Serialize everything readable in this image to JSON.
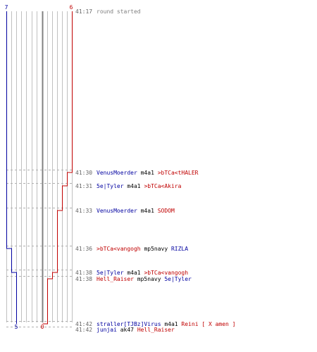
{
  "score": {
    "blue_team_start": "7",
    "red_team_start": "6",
    "blue_team_end": "5",
    "red_team_end": "0"
  },
  "colors": {
    "blue": "#0000a0",
    "red": "#c00000",
    "grid": "#c0c0c0",
    "center": "#808080",
    "dashed": "#b0b0b0",
    "timestamp": "#666666"
  },
  "events": [
    {
      "time": "41:17",
      "segments": [
        {
          "text": "round started",
          "color": "gray"
        }
      ]
    },
    {
      "time": "41:30",
      "segments": [
        {
          "text": "VenusMoerder",
          "color": "blue"
        },
        {
          "text": " m4a1 ",
          "color": "black"
        },
        {
          "text": ">bTCa<tHALER",
          "color": "red"
        }
      ]
    },
    {
      "time": "41:31",
      "segments": [
        {
          "text": "5e|Tyler",
          "color": "blue"
        },
        {
          "text": " m4a1 ",
          "color": "black"
        },
        {
          "text": ">bTCa<Akira",
          "color": "red"
        }
      ]
    },
    {
      "time": "41:33",
      "segments": [
        {
          "text": "VenusMoerder",
          "color": "blue"
        },
        {
          "text": " m4a1 ",
          "color": "black"
        },
        {
          "text": "SODOM",
          "color": "red"
        }
      ]
    },
    {
      "time": "41:36",
      "segments": [
        {
          "text": ">bTCa<vangogh",
          "color": "red"
        },
        {
          "text": " mp5navy ",
          "color": "black"
        },
        {
          "text": "RIZLA",
          "color": "blue"
        }
      ]
    },
    {
      "time": "41:38",
      "segments": [
        {
          "text": "5e|Tyler",
          "color": "blue"
        },
        {
          "text": " m4a1 ",
          "color": "black"
        },
        {
          "text": ">bTCa<vangogh",
          "color": "red"
        }
      ]
    },
    {
      "time": "41:38",
      "segments": [
        {
          "text": "Hell_Raiser",
          "color": "red"
        },
        {
          "text": " mp5navy ",
          "color": "black"
        },
        {
          "text": "5e|Tyler",
          "color": "blue"
        }
      ]
    },
    {
      "time": "41:42",
      "segments": [
        {
          "text": "straller[TJBz]Virus",
          "color": "blue"
        },
        {
          "text": " m4a1 ",
          "color": "black"
        },
        {
          "text": "Reini [ X amen ]",
          "color": "red"
        }
      ]
    },
    {
      "time": "41:42",
      "segments": [
        {
          "text": "junjai",
          "color": "blue"
        },
        {
          "text": " ak47 ",
          "color": "black"
        },
        {
          "text": "Hell_Raiser",
          "color": "red"
        }
      ]
    }
  ]
}
